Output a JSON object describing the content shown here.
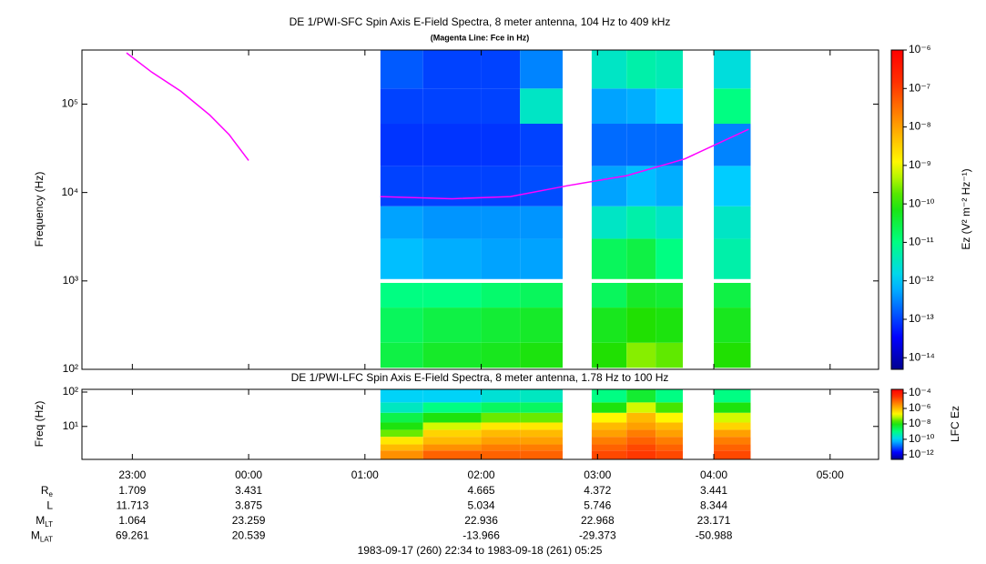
{
  "chart_data": [
    {
      "type": "spectrogram",
      "title": "DE 1/PWI-SFC  Spin Axis E-Field Spectra, 8 meter antenna, 104 Hz to 409 kHz",
      "subtitle": "(Magenta Line: Fce in Hz)",
      "y_label": "Frequency (Hz)",
      "xlim": [
        "22:34",
        "05:25"
      ],
      "ylim": [
        100,
        409000
      ],
      "log_y": true,
      "yticks": [
        {
          "value": 100,
          "label": "10²"
        },
        {
          "value": 1000,
          "label": "10³"
        },
        {
          "value": 10000,
          "label": "10⁴"
        },
        {
          "value": 100000,
          "label": "10⁵"
        }
      ],
      "freq_edges": [
        104,
        200,
        500,
        950,
        1050,
        3000,
        7000,
        20000,
        60000,
        150000,
        409000
      ],
      "columns": [
        {
          "start": "01:08",
          "end": "01:30",
          "z": [
            3e-11,
            2e-11,
            1e-11,
            null,
            8e-13,
            5e-13,
            1e-13,
            8e-14,
            1e-13,
            1.5e-13
          ]
        },
        {
          "start": "01:30",
          "end": "02:00",
          "z": [
            5e-11,
            3e-11,
            1e-11,
            null,
            6e-13,
            4e-13,
            1e-13,
            8e-14,
            1e-13,
            1e-13
          ]
        },
        {
          "start": "02:00",
          "end": "02:20",
          "z": [
            6e-11,
            4e-11,
            1.5e-11,
            null,
            5e-13,
            4e-13,
            1e-13,
            8e-14,
            1e-13,
            1e-13
          ]
        },
        {
          "start": "02:20",
          "end": "02:42",
          "z": [
            8e-11,
            5e-11,
            2e-11,
            null,
            5e-13,
            4e-13,
            1.2e-13,
            1e-13,
            3e-12,
            3e-13
          ]
        },
        {
          "start": "02:57",
          "end": "03:15",
          "z": [
            1e-10,
            6e-11,
            2e-11,
            null,
            2e-11,
            3e-12,
            5e-13,
            2e-13,
            5e-13,
            3e-12
          ]
        },
        {
          "start": "03:15",
          "end": "03:30",
          "z": [
            3e-10,
            1e-10,
            5e-11,
            null,
            3e-11,
            5e-12,
            8e-13,
            2e-13,
            6e-13,
            5e-12
          ]
        },
        {
          "start": "03:30",
          "end": "03:44",
          "z": [
            2e-10,
            8e-11,
            4e-11,
            null,
            1e-11,
            3e-12,
            6e-13,
            2e-13,
            1e-12,
            4e-12
          ]
        },
        {
          "start": "04:00",
          "end": "04:19",
          "z": [
            1e-10,
            6e-11,
            3e-11,
            null,
            5e-12,
            3e-12,
            1e-12,
            3e-13,
            1e-11,
            2e-12
          ]
        }
      ],
      "series": [
        {
          "color": "#ff00ff",
          "x": [
            "22:57",
            "23:10",
            "23:25",
            "23:40",
            "23:50",
            "00:00",
            "00:30",
            "01:08",
            "01:45",
            "02:15",
            "02:45",
            "03:15",
            "03:45",
            "04:18"
          ],
          "values": [
            380000,
            230000,
            140000,
            75000,
            45000,
            23000,
            null,
            9000,
            8500,
            9000,
            12000,
            15500,
            24000,
            52000
          ]
        }
      ],
      "colorbar": {
        "label": "Ez (V² m⁻² Hz⁻¹)",
        "lim": [
          5e-15,
          1e-06
        ],
        "ticks": [
          {
            "value": 1e-06,
            "label": "10⁻⁶"
          },
          {
            "value": 1e-07,
            "label": "10⁻⁷"
          },
          {
            "value": 1e-08,
            "label": "10⁻⁸"
          },
          {
            "value": 1e-09,
            "label": "10⁻⁹"
          },
          {
            "value": 1e-10,
            "label": "10⁻¹⁰"
          },
          {
            "value": 1e-11,
            "label": "10⁻¹¹"
          },
          {
            "value": 1e-12,
            "label": "10⁻¹²"
          },
          {
            "value": 1e-13,
            "label": "10⁻¹³"
          },
          {
            "value": 1e-14,
            "label": "10⁻¹⁴"
          }
        ]
      }
    },
    {
      "type": "spectrogram",
      "title": "DE 1/PWI-LFC  Spin Axis E-Field Spectra, 8 meter antenna, 1.78 Hz to 100 Hz",
      "y_label": "Freq (Hz)",
      "xlim": [
        "22:34",
        "05:25"
      ],
      "xticks": [
        "23:00",
        "00:00",
        "01:00",
        "02:00",
        "03:00",
        "04:00",
        "05:00"
      ],
      "ylim": [
        1.1,
        120
      ],
      "log_y": true,
      "yticks": [
        {
          "value": 10,
          "label": "10¹"
        },
        {
          "value": 100,
          "label": "10²"
        }
      ],
      "freq_edges": [
        1.1,
        2,
        3,
        5,
        8,
        13,
        25,
        50,
        120
      ],
      "columns": [
        {
          "start": "01:08",
          "end": "01:30",
          "z": [
            3e-06,
            1e-06,
            3e-07,
            3e-08,
            1e-08,
            3e-09,
            3e-10,
            1e-10
          ]
        },
        {
          "start": "01:30",
          "end": "02:00",
          "z": [
            1e-05,
            3e-06,
            1e-06,
            5e-07,
            1e-07,
            1e-08,
            1e-09,
            1e-10
          ]
        },
        {
          "start": "02:00",
          "end": "02:20",
          "z": [
            1e-05,
            5e-06,
            2e-06,
            1e-06,
            3e-07,
            3e-08,
            2e-09,
            2e-10
          ]
        },
        {
          "start": "02:20",
          "end": "02:42",
          "z": [
            1e-05,
            5e-06,
            2e-06,
            1e-06,
            3e-07,
            3e-08,
            2e-09,
            3e-10
          ]
        },
        {
          "start": "02:57",
          "end": "03:15",
          "z": [
            2e-05,
            1e-05,
            5e-06,
            2e-06,
            1e-06,
            2e-07,
            1e-08,
            1e-09
          ]
        },
        {
          "start": "03:15",
          "end": "03:30",
          "z": [
            3e-05,
            2e-05,
            1e-05,
            5e-06,
            2e-06,
            1e-06,
            1e-07,
            5e-09
          ]
        },
        {
          "start": "03:30",
          "end": "03:44",
          "z": [
            2e-05,
            1e-05,
            5e-06,
            2e-06,
            1e-06,
            2e-07,
            2e-08,
            1e-09
          ]
        },
        {
          "start": "04:00",
          "end": "04:19",
          "z": [
            2e-05,
            1e-05,
            5e-06,
            2e-06,
            5e-07,
            1e-07,
            1e-08,
            1e-09
          ]
        }
      ],
      "colorbar": {
        "label": "LFC Ez",
        "lim": [
          2.5e-13,
          0.0003
        ],
        "ticks": [
          {
            "value": 0.0001,
            "label": "10⁻⁴"
          },
          {
            "value": 1e-06,
            "label": "10⁻⁶"
          },
          {
            "value": 1e-08,
            "label": "10⁻⁸"
          },
          {
            "value": 1e-10,
            "label": "10⁻¹⁰"
          },
          {
            "value": 1e-12,
            "label": "10⁻¹²"
          }
        ]
      }
    }
  ],
  "ephemeris": {
    "rows": [
      {
        "label": "R",
        "sub": "e",
        "values": [
          1.709,
          3.431,
          null,
          4.665,
          4.372,
          3.441,
          null
        ]
      },
      {
        "label": "L",
        "values": [
          11.713,
          3.875,
          null,
          5.034,
          5.746,
          8.344,
          null
        ]
      },
      {
        "label": "M",
        "sub": "LT",
        "values": [
          1.064,
          23.259,
          null,
          22.936,
          22.968,
          23.171,
          null
        ]
      },
      {
        "label": "M",
        "sub": "LAT",
        "values": [
          69.261,
          20.539,
          null,
          -13.966,
          -29.373,
          -50.988,
          null
        ]
      }
    ]
  },
  "footer": "1983-09-17 (260) 22:34 to 1983-09-18 (261) 05:25"
}
